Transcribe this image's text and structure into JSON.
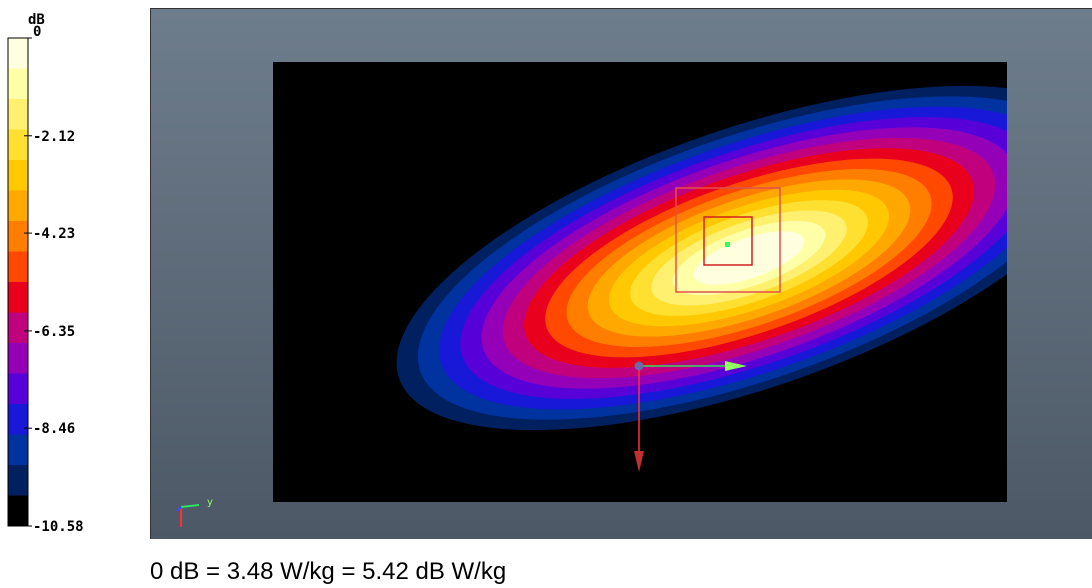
{
  "chart_data": {
    "type": "heatmap",
    "title": "",
    "unit": "dB",
    "colorbar": {
      "range": [
        0,
        -10.58
      ],
      "tick_labels": [
        "0",
        "-2.12",
        "-4.23",
        "-6.35",
        "-8.46",
        "-10.58"
      ],
      "bands": [
        {
          "color": "#ffffe0"
        },
        {
          "color": "#ffffa8"
        },
        {
          "color": "#fff070"
        },
        {
          "color": "#ffe030"
        },
        {
          "color": "#ffc800"
        },
        {
          "color": "#ffa800"
        },
        {
          "color": "#ff7e00"
        },
        {
          "color": "#ff4800"
        },
        {
          "color": "#e8001c"
        },
        {
          "color": "#c0007c"
        },
        {
          "color": "#9400b8"
        },
        {
          "color": "#5800d8"
        },
        {
          "color": "#1818d8"
        },
        {
          "color": "#0032a0"
        },
        {
          "color": "#002060"
        },
        {
          "color": "#000000"
        }
      ]
    },
    "hotspot": {
      "level_db": 0
    }
  },
  "footnote": "0 dB = 3.48 W/kg = 5.42 dB W/kg",
  "axes_triad": {
    "y_label": "y"
  },
  "colors": {
    "background_top": "#6e7d8c",
    "background_bottom": "#4c5866",
    "plot_area": "#000000",
    "zoom_box": "#e05050",
    "peak_marker": "#30ff60",
    "axis_y": "#30e060",
    "axis_z": "#ff3030"
  }
}
